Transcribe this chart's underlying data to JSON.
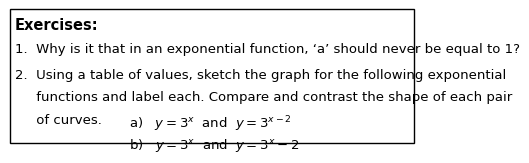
{
  "title": "Exercises:",
  "line1": "1.  Why is it that in an exponential function, ‘a’ should never be equal to 1?",
  "line2a": "2.  Using a table of values, sketch the graph for the following exponential",
  "line2b": "     functions and label each. Compare and contrast the shape of each pair",
  "line2c": "     of curves.",
  "part_a": "a)   $y=3^{x}$  and  $y=3^{x-2}$",
  "part_b": "b)   $y=3^{x}$  and  $y=3^{x}-2$",
  "bg_color": "#ffffff",
  "border_color": "#000000",
  "text_color": "#000000",
  "font_size": 9.5,
  "title_font_size": 10.5
}
